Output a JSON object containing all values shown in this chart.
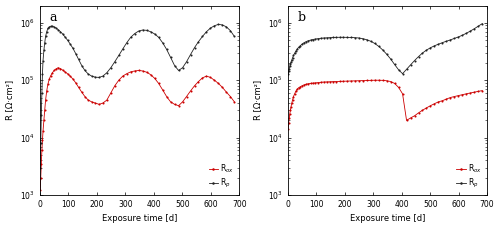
{
  "panel_a": {
    "label": "a",
    "rox": {
      "color": "#cc0000",
      "x": [
        1,
        3,
        5,
        7,
        9,
        11,
        14,
        17,
        20,
        24,
        28,
        33,
        38,
        44,
        50,
        57,
        64,
        72,
        80,
        88,
        97,
        106,
        116,
        126,
        136,
        147,
        158,
        170,
        182,
        195,
        208,
        221,
        235,
        249,
        263,
        277,
        291,
        305,
        319,
        333,
        347,
        361,
        375,
        389,
        403,
        417,
        431,
        445,
        459,
        473,
        487,
        501,
        515,
        529,
        543,
        557,
        571,
        585,
        599,
        613,
        627,
        641,
        655,
        669,
        683
      ],
      "y": [
        1200,
        2000,
        3500,
        6000,
        9000,
        13000,
        20000,
        30000,
        45000,
        65000,
        85000,
        105000,
        120000,
        135000,
        148000,
        158000,
        165000,
        160000,
        150000,
        140000,
        130000,
        118000,
        105000,
        90000,
        75000,
        62000,
        52000,
        45000,
        42000,
        40000,
        38000,
        40000,
        45000,
        60000,
        80000,
        100000,
        118000,
        130000,
        140000,
        145000,
        148000,
        145000,
        138000,
        125000,
        108000,
        88000,
        68000,
        52000,
        42000,
        38000,
        36000,
        42000,
        52000,
        65000,
        80000,
        95000,
        110000,
        118000,
        112000,
        100000,
        88000,
        75000,
        62000,
        52000,
        42000
      ]
    },
    "rp": {
      "color": "#222222",
      "x": [
        1,
        3,
        5,
        7,
        9,
        11,
        14,
        17,
        20,
        24,
        28,
        33,
        38,
        44,
        50,
        57,
        64,
        72,
        80,
        88,
        97,
        106,
        116,
        126,
        136,
        147,
        158,
        170,
        182,
        195,
        208,
        221,
        235,
        249,
        263,
        277,
        291,
        305,
        319,
        333,
        347,
        361,
        375,
        389,
        403,
        417,
        431,
        445,
        459,
        473,
        487,
        501,
        515,
        529,
        543,
        557,
        571,
        585,
        599,
        613,
        627,
        641,
        655,
        669,
        683
      ],
      "y": [
        3000,
        8000,
        25000,
        60000,
        130000,
        220000,
        330000,
        450000,
        580000,
        700000,
        800000,
        850000,
        870000,
        870000,
        850000,
        810000,
        760000,
        700000,
        640000,
        570000,
        500000,
        430000,
        360000,
        290000,
        230000,
        180000,
        148000,
        128000,
        118000,
        113000,
        112000,
        118000,
        135000,
        165000,
        210000,
        270000,
        350000,
        450000,
        560000,
        650000,
        720000,
        750000,
        740000,
        700000,
        640000,
        560000,
        450000,
        345000,
        250000,
        180000,
        148000,
        165000,
        210000,
        280000,
        370000,
        470000,
        580000,
        700000,
        810000,
        890000,
        940000,
        920000,
        850000,
        730000,
        580000
      ]
    },
    "xlim": [
      0,
      700
    ],
    "ylim": [
      1000,
      2000000
    ],
    "xlabel": "Exposure time [d]",
    "ylabel": "R [Ω·cm²]"
  },
  "panel_b": {
    "label": "b",
    "rox": {
      "color": "#cc0000",
      "x": [
        1,
        3,
        5,
        7,
        9,
        11,
        14,
        17,
        20,
        24,
        28,
        33,
        38,
        44,
        50,
        57,
        64,
        72,
        80,
        88,
        97,
        106,
        116,
        126,
        136,
        147,
        158,
        170,
        182,
        195,
        208,
        221,
        235,
        249,
        263,
        277,
        291,
        305,
        319,
        333,
        347,
        361,
        375,
        389,
        403,
        417,
        431,
        445,
        459,
        473,
        487,
        501,
        515,
        529,
        543,
        557,
        571,
        585,
        599,
        613,
        627,
        641,
        655,
        669,
        683
      ],
      "y": [
        14000,
        18000,
        22000,
        26000,
        30000,
        34000,
        40000,
        46000,
        52000,
        58000,
        64000,
        70000,
        74000,
        77000,
        80000,
        83000,
        85000,
        87000,
        88000,
        89000,
        90000,
        91000,
        92000,
        93000,
        93500,
        94000,
        94500,
        95000,
        95500,
        96000,
        96500,
        97000,
        97500,
        98000,
        98500,
        99000,
        99500,
        100000,
        100000,
        99500,
        98000,
        95000,
        88000,
        75000,
        58000,
        20000,
        22000,
        24000,
        27000,
        30000,
        33000,
        36000,
        39000,
        42000,
        44000,
        47000,
        50000,
        52000,
        54000,
        56000,
        58000,
        60000,
        62000,
        64000,
        66000
      ]
    },
    "rp": {
      "color": "#222222",
      "x": [
        1,
        3,
        5,
        7,
        9,
        11,
        14,
        17,
        20,
        24,
        28,
        33,
        38,
        44,
        50,
        57,
        64,
        72,
        80,
        88,
        97,
        106,
        116,
        126,
        136,
        147,
        158,
        170,
        182,
        195,
        208,
        221,
        235,
        249,
        263,
        277,
        291,
        305,
        319,
        333,
        347,
        361,
        375,
        389,
        403,
        417,
        431,
        445,
        459,
        473,
        487,
        501,
        515,
        529,
        543,
        557,
        571,
        585,
        599,
        613,
        627,
        641,
        655,
        669,
        683
      ],
      "y": [
        130000,
        145000,
        160000,
        175000,
        190000,
        205000,
        225000,
        248000,
        270000,
        295000,
        320000,
        350000,
        375000,
        400000,
        425000,
        450000,
        470000,
        488000,
        500000,
        512000,
        522000,
        530000,
        538000,
        544000,
        548000,
        552000,
        556000,
        558000,
        560000,
        560000,
        558000,
        556000,
        552000,
        545000,
        530000,
        508000,
        478000,
        438000,
        390000,
        338000,
        285000,
        235000,
        188000,
        152000,
        130000,
        155000,
        185000,
        220000,
        258000,
        298000,
        335000,
        368000,
        398000,
        425000,
        452000,
        478000,
        505000,
        535000,
        568000,
        608000,
        658000,
        718000,
        790000,
        875000,
        970000
      ]
    },
    "xlim": [
      0,
      700
    ],
    "ylim": [
      1000,
      2000000
    ],
    "xlabel": "Exposure time [d]",
    "ylabel": "R [Ω·cm²]"
  },
  "legend_rox_label": "R$_{ox}$",
  "legend_rp_label": "R$_{p}$",
  "marker": ".",
  "markersize": 3,
  "linewidth": 0.6,
  "background_color": "#ffffff",
  "yticks": [
    1000,
    10000,
    100000,
    1000000
  ],
  "xticks": [
    0,
    100,
    200,
    300,
    400,
    500,
    600,
    700
  ]
}
